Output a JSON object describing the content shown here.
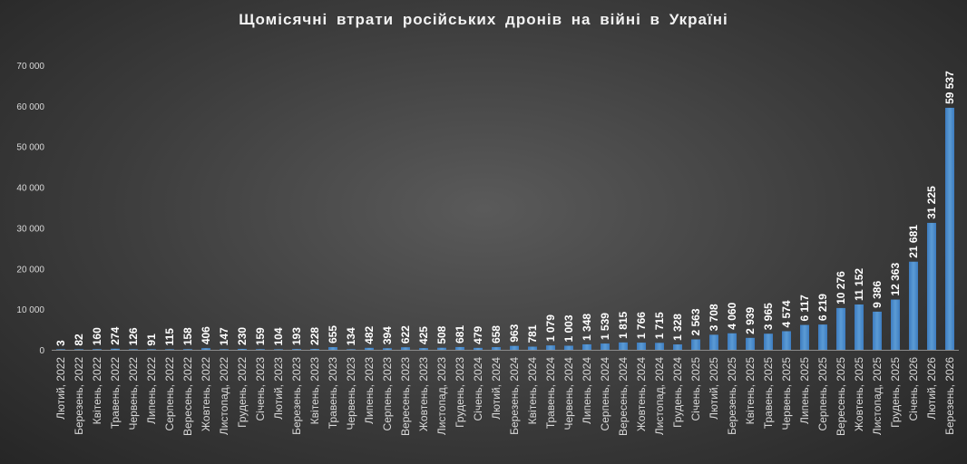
{
  "chart_data": {
    "type": "bar",
    "title": "Щомісячні  втрати  російських  дронів  на  війні  в  Україні",
    "ylim": [
      0,
      70000
    ],
    "yticks": [
      "0",
      "10 000",
      "20 000",
      "30 000",
      "40 000",
      "50 000",
      "60 000",
      "70 000"
    ],
    "grid": false,
    "bar_color": "#5b9bd5",
    "categories": [
      "Лютий, 2022",
      "Березень, 2022",
      "Квітень, 2022",
      "Травень, 2022",
      "Червень, 2022",
      "Липень, 2022",
      "Серпень, 2022",
      "Вересень, 2022",
      "Жовтень, 2022",
      "Листопад, 2022",
      "Грудень, 2022",
      "Січень, 2023",
      "Лютий, 2023",
      "Березень, 2023",
      "Квітень, 2023",
      "Травень, 2023",
      "Червень, 2023",
      "Липень, 2023",
      "Серпень, 2023",
      "Вересень, 2023",
      "Жовтень, 2023",
      "Листопад, 2023",
      "Грудень, 2023",
      "Січень, 2024",
      "Лютий, 2024",
      "Березень, 2024",
      "Квітень, 2024",
      "Травень, 2024",
      "Червень, 2024",
      "Липень, 2024",
      "Серпень, 2024",
      "Вересень, 2024",
      "Жовтень, 2024",
      "Листопад, 2024",
      "Грудень, 2024",
      "Січень, 2025",
      "Лютий, 2025",
      "Березень, 2025",
      "Квітень, 2025",
      "Травень, 2025",
      "Червень, 2025",
      "Липень, 2025",
      "Серпень, 2025",
      "Вересень, 2025",
      "Жовтень, 2025",
      "Листопад, 2025",
      "Грудень, 2025",
      "Січень, 2026",
      "Лютий, 2026",
      "Березень, 2026"
    ],
    "values": [
      3,
      82,
      160,
      274,
      126,
      91,
      115,
      158,
      406,
      147,
      230,
      159,
      104,
      193,
      228,
      655,
      134,
      482,
      394,
      622,
      425,
      508,
      681,
      479,
      658,
      963,
      781,
      1079,
      1003,
      1348,
      1539,
      1815,
      1766,
      1715,
      1328,
      2563,
      3708,
      4060,
      2939,
      3965,
      4574,
      6117,
      6219,
      10276,
      11152,
      9386,
      12363,
      21681,
      31225,
      59537
    ],
    "labels": [
      "3",
      "82",
      "160",
      "274",
      "126",
      "91",
      "115",
      "158",
      "406",
      "147",
      "230",
      "159",
      "104",
      "193",
      "228",
      "655",
      "134",
      "482",
      "394",
      "622",
      "425",
      "508",
      "681",
      "479",
      "658",
      "963",
      "781",
      "1 079",
      "1 003",
      "1 348",
      "1 539",
      "1 815",
      "1 766",
      "1 715",
      "1 328",
      "2 563",
      "3 708",
      "4 060",
      "2 939",
      "3 965",
      "4 574",
      "6 117",
      "6 219",
      "10 276",
      "11 152",
      "9 386",
      "12 363",
      "21 681",
      "31 225",
      "59 537"
    ]
  }
}
